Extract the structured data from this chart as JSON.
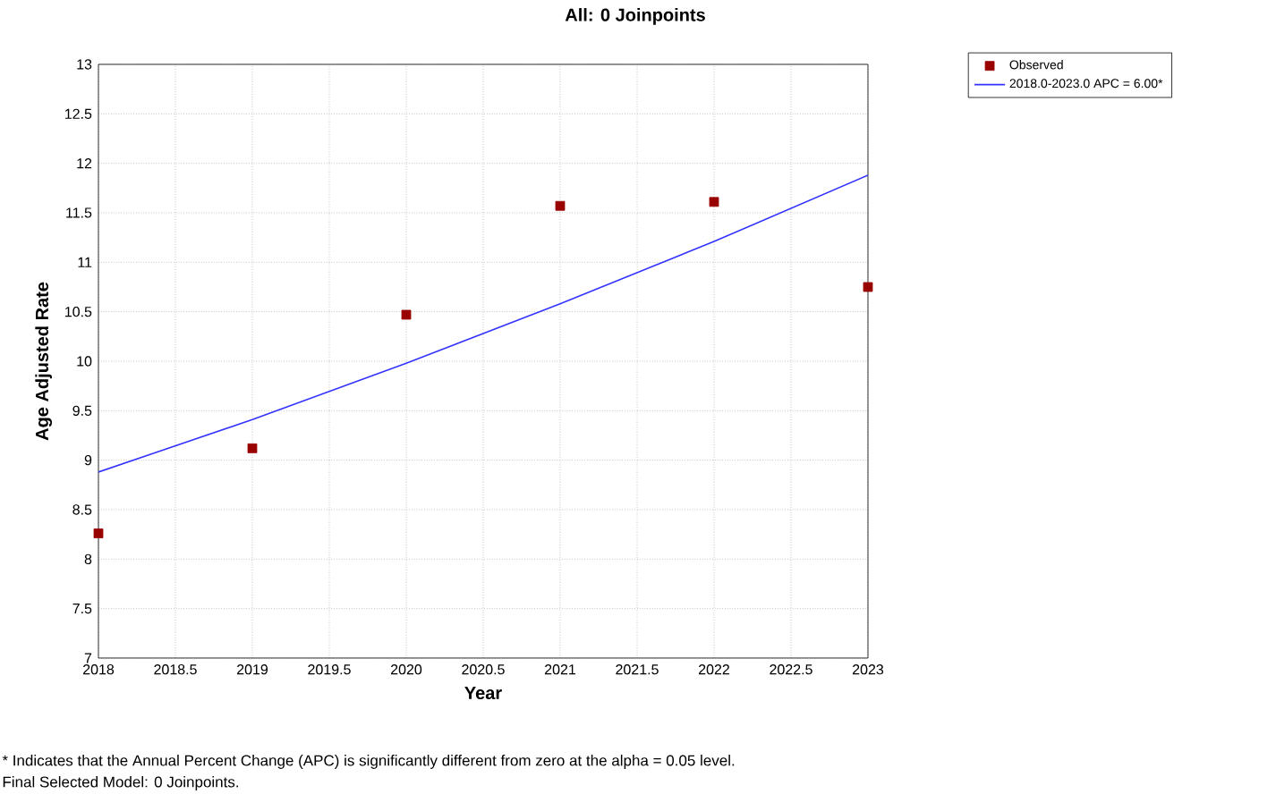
{
  "chart_data": {
    "type": "scatter",
    "title": "All: 0 Joinpoints",
    "xlabel": "Year",
    "ylabel": "Age Adjusted Rate",
    "x": [
      2018,
      2019,
      2020,
      2021,
      2022,
      2023
    ],
    "series": [
      {
        "name": "Observed",
        "color": "#990000",
        "marker": "square",
        "values": [
          8.26,
          9.12,
          10.47,
          11.57,
          11.61,
          10.75
        ]
      },
      {
        "name": "2018.0-2023.0 APC  = 6.00*",
        "type": "line",
        "color": "#3333ff",
        "marker": "none",
        "line_style": "solid",
        "values": [
          8.88,
          9.41,
          9.98,
          10.58,
          11.21,
          11.88
        ]
      }
    ],
    "xlim": [
      2018,
      2023
    ],
    "xticks": [
      2018,
      2018.5,
      2019,
      2019.5,
      2020,
      2020.5,
      2021,
      2021.5,
      2022,
      2022.5,
      2023
    ],
    "ylim": [
      7,
      13
    ],
    "yticks": [
      7,
      7.5,
      8,
      8.5,
      9,
      9.5,
      10,
      10.5,
      11,
      11.5,
      12,
      12.5,
      13
    ],
    "grid": true,
    "legend": "top right",
    "annotations": [
      "* Indicates that the Annual Percent Change (APC) is significantly different from zero at the alpha = 0.05 level.",
      "Final Selected Model: 0 Joinpoints."
    ]
  }
}
